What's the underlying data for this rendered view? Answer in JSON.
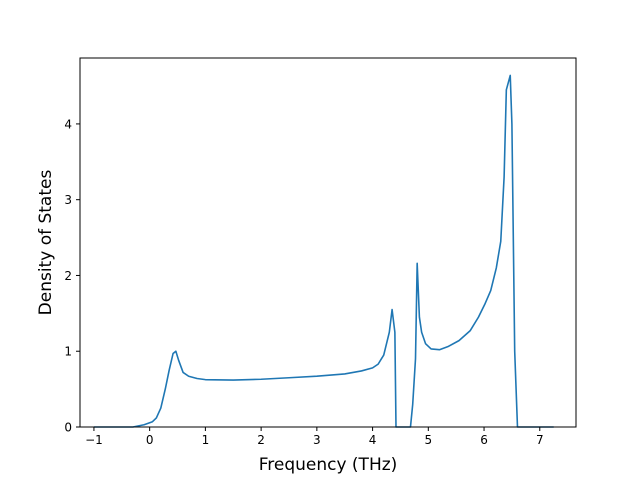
{
  "chart_data": {
    "type": "line",
    "title": "",
    "xlabel": "Frequency (THz)",
    "ylabel": "Density of States",
    "xlim": [
      -1.25,
      7.65
    ],
    "ylim": [
      0,
      4.87
    ],
    "xticks": [
      -1,
      0,
      1,
      2,
      3,
      4,
      5,
      6,
      7
    ],
    "yticks": [
      0,
      1,
      2,
      3,
      4
    ],
    "grid": false,
    "series": [
      {
        "color": "#1f77b4",
        "points": [
          [
            -1.0,
            0.0
          ],
          [
            -0.6,
            0.0
          ],
          [
            -0.3,
            0.0
          ],
          [
            -0.1,
            0.03
          ],
          [
            0.05,
            0.07
          ],
          [
            0.12,
            0.12
          ],
          [
            0.2,
            0.25
          ],
          [
            0.28,
            0.5
          ],
          [
            0.35,
            0.75
          ],
          [
            0.42,
            0.97
          ],
          [
            0.47,
            1.0
          ],
          [
            0.52,
            0.88
          ],
          [
            0.6,
            0.72
          ],
          [
            0.7,
            0.67
          ],
          [
            0.85,
            0.64
          ],
          [
            1.0,
            0.625
          ],
          [
            1.5,
            0.62
          ],
          [
            2.0,
            0.63
          ],
          [
            2.5,
            0.65
          ],
          [
            3.0,
            0.67
          ],
          [
            3.5,
            0.7
          ],
          [
            3.8,
            0.74
          ],
          [
            4.0,
            0.78
          ],
          [
            4.1,
            0.83
          ],
          [
            4.2,
            0.95
          ],
          [
            4.3,
            1.25
          ],
          [
            4.35,
            1.55
          ],
          [
            4.4,
            1.25
          ],
          [
            4.42,
            0.0
          ],
          [
            4.68,
            0.0
          ],
          [
            4.72,
            0.3
          ],
          [
            4.77,
            0.9
          ],
          [
            4.8,
            2.16
          ],
          [
            4.84,
            1.45
          ],
          [
            4.88,
            1.25
          ],
          [
            4.95,
            1.1
          ],
          [
            5.05,
            1.03
          ],
          [
            5.2,
            1.02
          ],
          [
            5.35,
            1.06
          ],
          [
            5.55,
            1.14
          ],
          [
            5.75,
            1.27
          ],
          [
            5.9,
            1.45
          ],
          [
            6.02,
            1.63
          ],
          [
            6.12,
            1.8
          ],
          [
            6.22,
            2.1
          ],
          [
            6.3,
            2.45
          ],
          [
            6.36,
            3.3
          ],
          [
            6.4,
            4.45
          ],
          [
            6.47,
            4.64
          ],
          [
            6.5,
            4.0
          ],
          [
            6.55,
            1.0
          ],
          [
            6.6,
            0.0
          ],
          [
            7.0,
            0.0
          ],
          [
            7.25,
            0.0
          ]
        ]
      }
    ]
  }
}
